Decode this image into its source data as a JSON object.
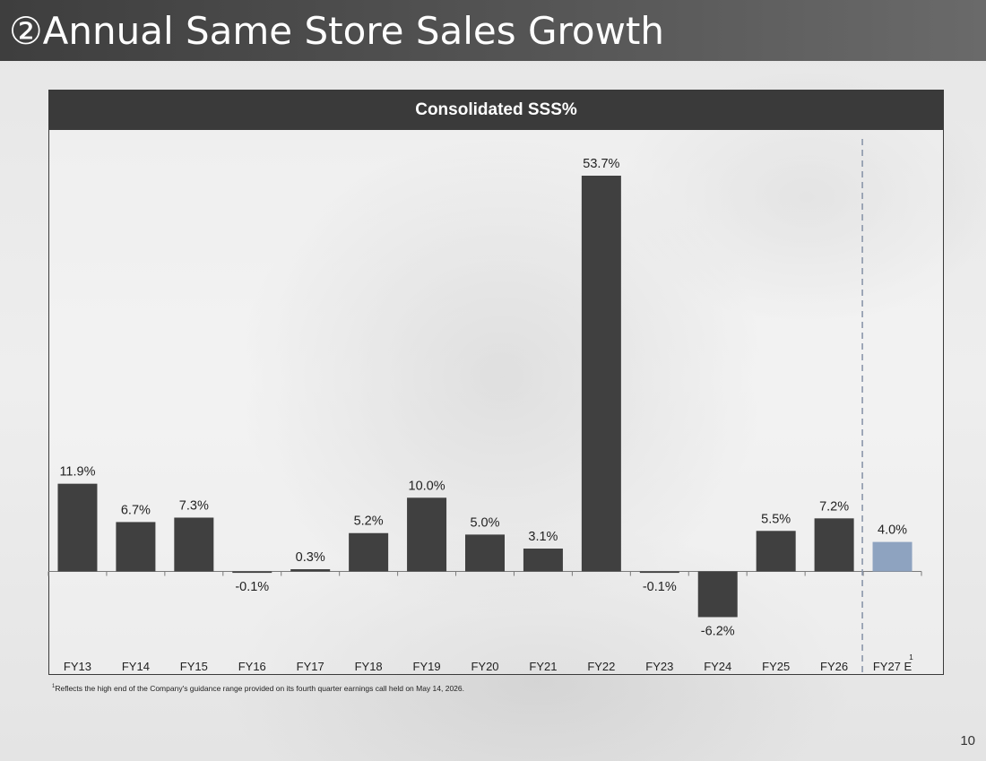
{
  "slide": {
    "title": "②Annual Same Store Sales Growth",
    "page_number": "10",
    "footnote_marker": "1",
    "footnote_text": "Reflects the high end of the Company's guidance range provided on its fourth quarter earnings call held on May 14, 2026."
  },
  "chart_data": {
    "type": "bar",
    "title": "Consolidated SSS%",
    "categories": [
      "FY13",
      "FY14",
      "FY15",
      "FY16",
      "FY17",
      "FY18",
      "FY19",
      "FY20",
      "FY21",
      "FY22",
      "FY23",
      "FY24",
      "FY25",
      "FY26",
      "FY27 E"
    ],
    "values": [
      11.9,
      6.7,
      7.3,
      -0.1,
      0.3,
      5.2,
      10.0,
      5.0,
      3.1,
      53.7,
      -0.1,
      -6.2,
      5.5,
      7.2,
      4.0
    ],
    "value_labels": [
      "11.9%",
      "6.7%",
      "7.3%",
      "-0.1%",
      "0.3%",
      "5.2%",
      "10.0%",
      "5.0%",
      "3.1%",
      "53.7%",
      "-0.1%",
      "-6.2%",
      "5.5%",
      "7.2%",
      "4.0%"
    ],
    "estimate_category_superscript": "1",
    "ylim": [
      -12,
      56
    ],
    "grid": false,
    "colors": {
      "actual": "#404040",
      "estimate": "#8ea3c0",
      "divider": "#8a96aa"
    }
  }
}
